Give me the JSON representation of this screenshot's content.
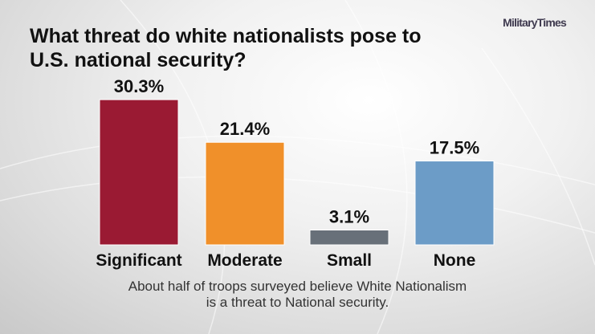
{
  "brand": {
    "logo_text": "MilitaryTimes"
  },
  "header": {
    "title_line1": "What threat do white nationalists pose to",
    "title_line2": "U.S. national security?"
  },
  "footer": {
    "caption_line1": "About half of troops surveyed believe White Nationalism",
    "caption_line2": "is a threat to National security."
  },
  "chart_data": {
    "type": "bar",
    "title": "What threat do white nationalists pose to U.S. national security?",
    "categories": [
      "Significant",
      "Moderate",
      "Small",
      "None"
    ],
    "values": [
      30.3,
      21.4,
      3.1,
      17.5
    ],
    "value_labels": [
      "30.3%",
      "21.4%",
      "3.1%",
      "17.5%"
    ],
    "colors": [
      "#9a1a33",
      "#f0902a",
      "#687079",
      "#6c9cc7"
    ],
    "unit": "%",
    "grid": false,
    "legend": "none"
  }
}
